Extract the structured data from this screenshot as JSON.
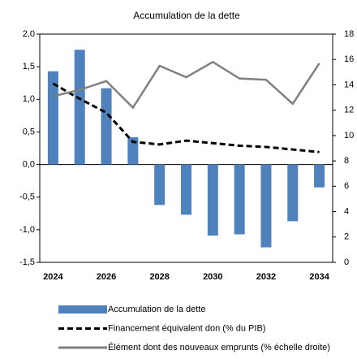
{
  "chart_data": {
    "type": "bar-line",
    "title": "Accumulation de la dette",
    "categories": [
      "2024",
      null,
      "2026",
      null,
      "2028",
      null,
      "2030",
      null,
      "2032",
      null,
      "2034"
    ],
    "ylim": [
      -1.5,
      2.0
    ],
    "yticks": [
      {
        "value": -1.5,
        "label": "-1,5"
      },
      {
        "value": -1.0,
        "label": "-1,0"
      },
      {
        "value": -0.5,
        "label": "-0,5"
      },
      {
        "value": 0,
        "label": "0,0"
      },
      {
        "value": 0.5,
        "label": "0,5"
      },
      {
        "value": 1.0,
        "label": "1,0"
      },
      {
        "value": 1.5,
        "label": "1,5"
      },
      {
        "value": 2.0,
        "label": "2,0"
      }
    ],
    "y2lim": [
      0,
      18
    ],
    "y2ticks": [
      0,
      2,
      4,
      6,
      8,
      10,
      12,
      14,
      16,
      18
    ],
    "series": [
      {
        "name": "Accumulation de la dette",
        "type": "bar",
        "color": "#4f81bd",
        "values": [
          1.43,
          1.76,
          1.17,
          0.42,
          -0.62,
          -0.77,
          -1.09,
          -1.07,
          -1.27,
          -0.87,
          -0.35
        ]
      },
      {
        "name": "Financement équivalent don (% du PIB)",
        "type": "line",
        "axis": "y2",
        "color": "#000000",
        "style": "dashed",
        "values": [
          14.1,
          12.9,
          11.8,
          9.5,
          9.3,
          9.6,
          9.4,
          9.2,
          9.1,
          8.9,
          8.7
        ]
      },
      {
        "name": "Élément dont des nouveaux emprunts (% échelle droite)",
        "type": "line",
        "axis": "y2",
        "color": "#808080",
        "style": "solid",
        "values": [
          13.1,
          13.6,
          14.3,
          12.2,
          15.5,
          14.6,
          15.8,
          14.5,
          14.4,
          12.5,
          15.7
        ]
      }
    ]
  }
}
